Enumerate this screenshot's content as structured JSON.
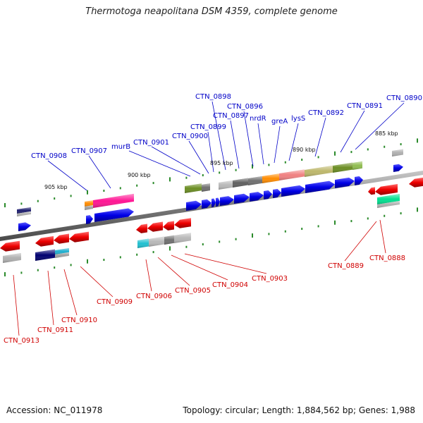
{
  "title": "Thermotoga neapolitana DSM 4359, complete genome",
  "footer": {
    "accession": "Accession: NC_011978",
    "stats": "Topology: circular; Length: 1,884,562 bp; Genes: 1,988"
  },
  "ticks": [
    "905 kbp",
    "900 kbp",
    "895 kbp",
    "890 kbp",
    "885 kbp"
  ],
  "top_labels": [
    "CTN_0908",
    "CTN_0907",
    "murB",
    "CTN_0901",
    "CTN_0900",
    "CTN_0899",
    "CTN_0898",
    "CTN_0897",
    "CTN_0896",
    "nrdR",
    "greA",
    "lysS",
    "CTN_0892",
    "CTN_0891",
    "CTN_0890"
  ],
  "bottom_labels": [
    "CTN_0913",
    "CTN_0911",
    "CTN_0910",
    "CTN_0909",
    "CTN_0906",
    "CTN_0905",
    "CTN_0904",
    "CTN_0903",
    "CTN_0889",
    "CTN_0888"
  ],
  "colors": {
    "forward_gene": "#0000e0",
    "reverse_gene": "#e00000",
    "top_label": "#0000c8",
    "bottom_label": "#d00000",
    "backbone": "#808080",
    "tick_mark": "#2a8a2a"
  }
}
